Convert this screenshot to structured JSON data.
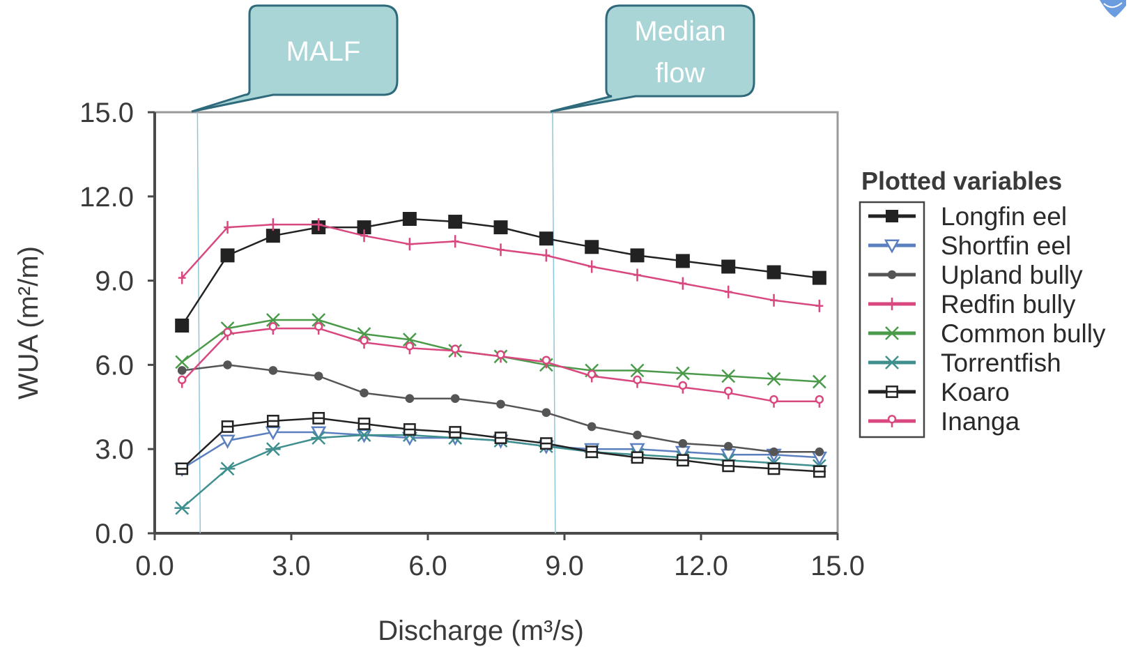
{
  "chart_data": {
    "type": "line",
    "title": "",
    "xlabel": "Discharge (m³/s)",
    "ylabel": "WUA (m²/m)",
    "xlim": [
      0,
      15
    ],
    "ylim": [
      0,
      15
    ],
    "xticks": [
      "0.0",
      "3.0",
      "6.0",
      "9.0",
      "12.0",
      "15.0"
    ],
    "yticks": [
      "0.0",
      "3.0",
      "6.0",
      "9.0",
      "12.0",
      "15.0"
    ],
    "grid": false,
    "legend_title": "Plotted variables",
    "legend_position": "right",
    "x": [
      0.6,
      1.6,
      2.6,
      3.6,
      4.6,
      5.6,
      6.6,
      7.6,
      8.6,
      9.6,
      10.6,
      11.6,
      12.6,
      13.6,
      14.6
    ],
    "series": [
      {
        "name": "Longfin eel",
        "color": "#222222",
        "marker": "filled-square",
        "values": [
          7.4,
          9.9,
          10.6,
          10.9,
          10.9,
          11.2,
          11.1,
          10.9,
          10.5,
          10.2,
          9.9,
          9.7,
          9.5,
          9.3,
          9.1
        ]
      },
      {
        "name": "Shortfin eel",
        "color": "#5b7fbf",
        "marker": "triangle-down",
        "values": [
          2.3,
          3.3,
          3.6,
          3.6,
          3.5,
          3.4,
          3.4,
          3.3,
          3.1,
          3.0,
          3.0,
          2.9,
          2.8,
          2.8,
          2.7
        ]
      },
      {
        "name": "Upland bully",
        "color": "#555555",
        "marker": "circle",
        "values": [
          5.8,
          6.0,
          5.8,
          5.6,
          5.0,
          4.8,
          4.8,
          4.6,
          4.3,
          3.8,
          3.5,
          3.2,
          3.1,
          2.9,
          2.9
        ]
      },
      {
        "name": "Redfin bully",
        "color": "#d9477f",
        "marker": "plus",
        "values": [
          9.1,
          10.9,
          11.0,
          11.0,
          10.6,
          10.3,
          10.4,
          10.1,
          9.9,
          9.5,
          9.2,
          8.9,
          8.6,
          8.3,
          8.1
        ]
      },
      {
        "name": "Common bully",
        "color": "#4a9a4a",
        "marker": "x",
        "values": [
          6.1,
          7.3,
          7.6,
          7.6,
          7.1,
          6.9,
          6.5,
          6.3,
          6.0,
          5.8,
          5.8,
          5.7,
          5.6,
          5.5,
          5.4
        ]
      },
      {
        "name": "Torrentfish",
        "color": "#3f8f8f",
        "marker": "star",
        "values": [
          0.9,
          2.3,
          3.0,
          3.4,
          3.5,
          3.5,
          3.4,
          3.3,
          3.1,
          2.9,
          2.8,
          2.7,
          2.6,
          2.5,
          2.4
        ]
      },
      {
        "name": "Koaro",
        "color": "#222222",
        "marker": "square-open",
        "values": [
          2.3,
          3.8,
          4.0,
          4.1,
          3.9,
          3.7,
          3.6,
          3.4,
          3.2,
          2.9,
          2.7,
          2.6,
          2.4,
          2.3,
          2.2
        ]
      },
      {
        "name": "Inanga",
        "color": "#d9477f",
        "marker": "lollipop",
        "values": [
          5.4,
          7.1,
          7.3,
          7.3,
          6.8,
          6.6,
          6.5,
          6.3,
          6.1,
          5.6,
          5.4,
          5.2,
          5.0,
          4.7,
          4.7
        ]
      }
    ],
    "annotations": [
      {
        "label": "MALF",
        "x": 1.0
      },
      {
        "label": "Median flow",
        "x": 8.8
      }
    ]
  },
  "callouts": {
    "malf": "MALF",
    "median_line1": "Median",
    "median_line2": "flow"
  },
  "colors": {
    "callout_fill": "#a9d5d6",
    "callout_border": "#2e6a7b",
    "vline": "#8ec6d9"
  }
}
